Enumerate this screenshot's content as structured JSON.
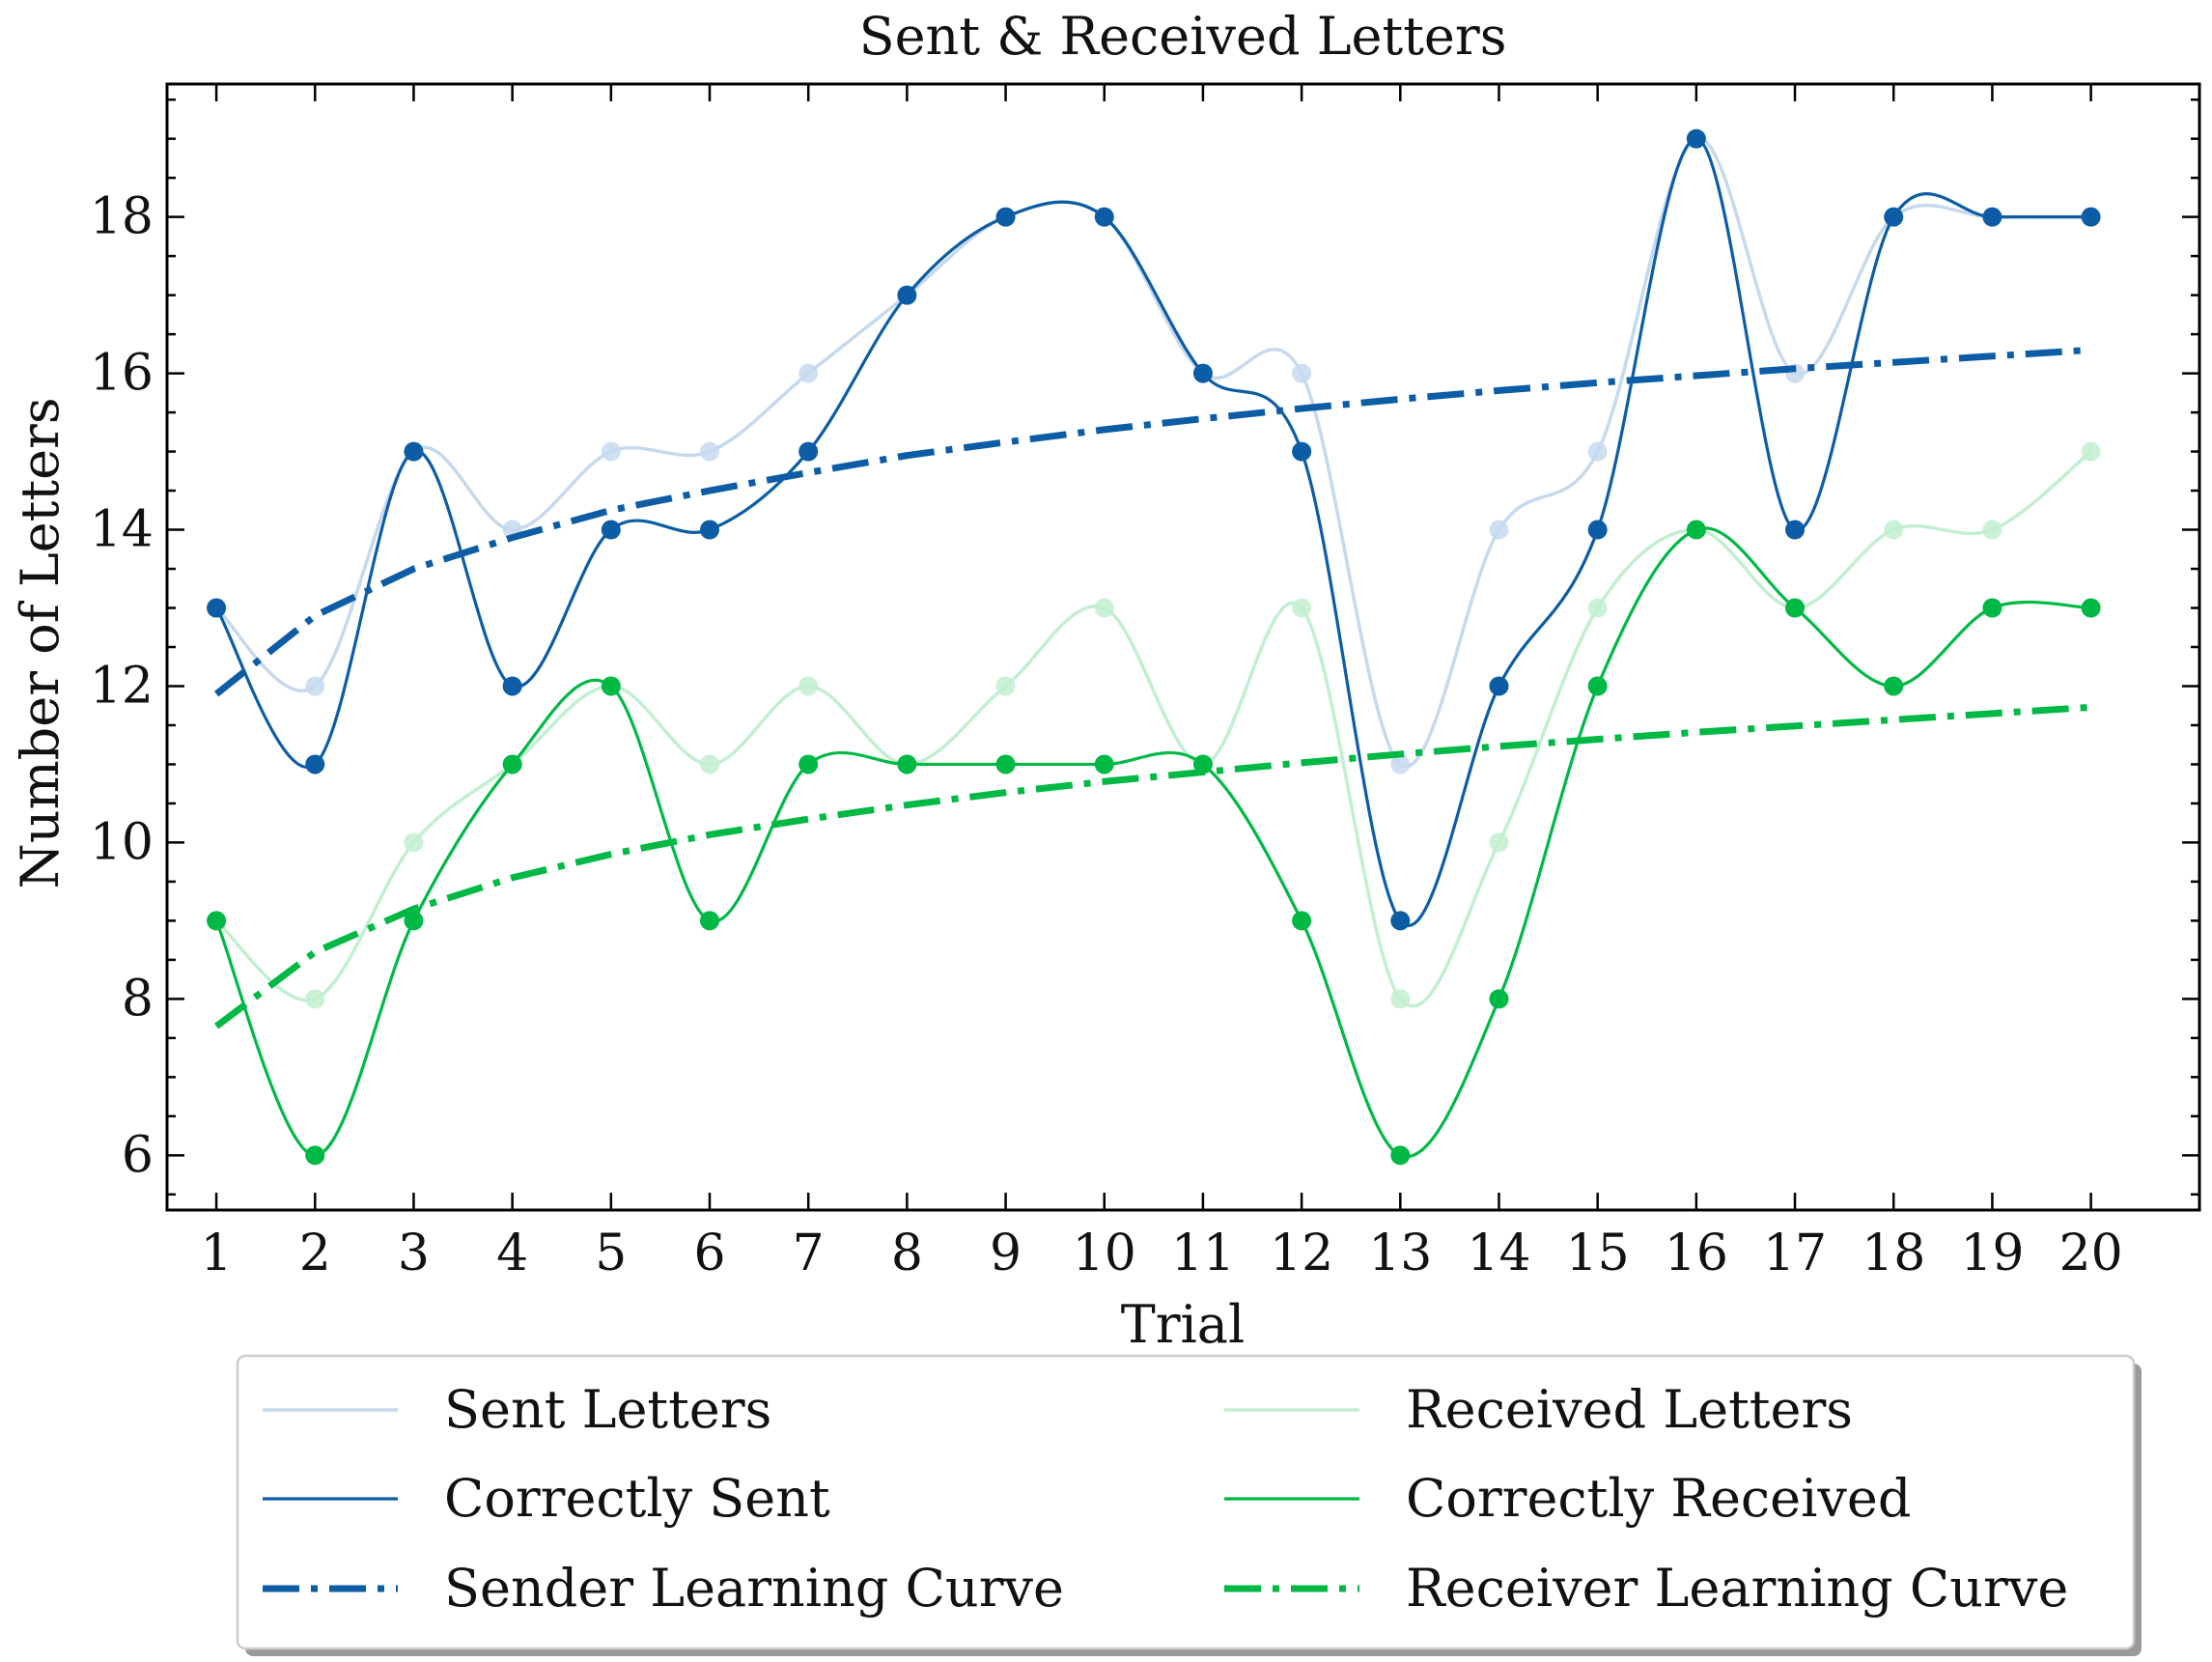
{
  "chart_data": {
    "type": "line",
    "title": "Sent & Received Letters",
    "xlabel": "Trial",
    "ylabel": "Number of Letters",
    "x": [
      1,
      2,
      3,
      4,
      5,
      6,
      7,
      8,
      9,
      10,
      11,
      12,
      13,
      14,
      15,
      16,
      17,
      18,
      19,
      20
    ],
    "xlim": [
      0.5,
      21.1
    ],
    "ylim": [
      5.3,
      19.7
    ],
    "yticks": [
      6,
      8,
      10,
      12,
      14,
      16,
      18
    ],
    "grid": false,
    "legend_position": "below",
    "series": [
      {
        "name": "Sent Letters",
        "style": "smooth-light",
        "color": "#c6d9ee",
        "values": [
          13,
          12,
          15,
          14,
          15,
          15,
          16,
          17,
          18,
          18,
          16,
          16,
          11,
          14,
          15,
          19,
          16,
          18,
          18,
          18
        ]
      },
      {
        "name": "Correctly Sent",
        "style": "smooth",
        "color": "#0c5da5",
        "values": [
          13,
          11,
          15,
          12,
          14,
          14,
          15,
          17,
          18,
          18,
          16,
          15,
          9,
          12,
          14,
          19,
          14,
          18,
          18,
          18
        ]
      },
      {
        "name": "Sender Learning Curve",
        "style": "dashdot",
        "color": "#0c5da5",
        "values": [
          11.9,
          12.9,
          13.5,
          13.9,
          14.25,
          14.5,
          14.73,
          14.95,
          15.12,
          15.28,
          15.42,
          15.55,
          15.67,
          15.78,
          15.88,
          15.97,
          16.06,
          16.14,
          16.22,
          16.3
        ]
      },
      {
        "name": "Received Letters",
        "style": "smooth-light",
        "color": "#c2efcf",
        "values": [
          9,
          8,
          10,
          11,
          12,
          11,
          12,
          11,
          12,
          13,
          11,
          13,
          8,
          10,
          13,
          14,
          13,
          14,
          14,
          15
        ]
      },
      {
        "name": "Correctly Received",
        "style": "smooth",
        "color": "#00b945",
        "values": [
          9,
          6,
          9,
          11,
          12,
          9,
          11,
          11,
          11,
          11,
          11,
          9,
          6,
          8,
          12,
          14,
          13,
          12,
          13,
          13
        ]
      },
      {
        "name": "Receiver Learning Curve",
        "style": "dashdot",
        "color": "#00b945",
        "values": [
          7.65,
          8.6,
          9.15,
          9.55,
          9.85,
          10.1,
          10.3,
          10.48,
          10.64,
          10.78,
          10.9,
          11.02,
          11.13,
          11.23,
          11.32,
          11.41,
          11.49,
          11.57,
          11.65,
          11.73
        ]
      }
    ],
    "legend_order": [
      0,
      3,
      1,
      4,
      2,
      5
    ]
  }
}
